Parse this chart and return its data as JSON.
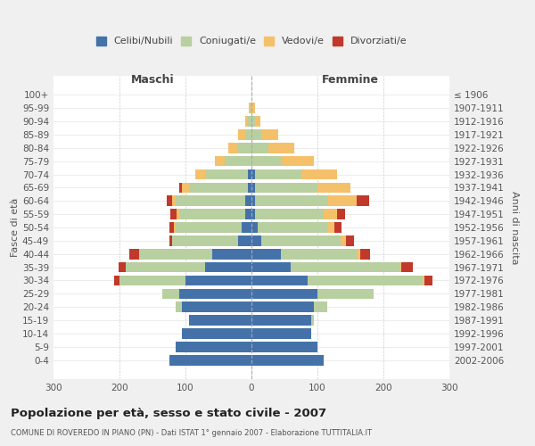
{
  "age_groups": [
    "0-4",
    "5-9",
    "10-14",
    "15-19",
    "20-24",
    "25-29",
    "30-34",
    "35-39",
    "40-44",
    "45-49",
    "50-54",
    "55-59",
    "60-64",
    "65-69",
    "70-74",
    "75-79",
    "80-84",
    "85-89",
    "90-94",
    "95-99",
    "100+"
  ],
  "birth_years": [
    "2002-2006",
    "1997-2001",
    "1992-1996",
    "1987-1991",
    "1982-1986",
    "1977-1981",
    "1972-1976",
    "1967-1971",
    "1962-1966",
    "1957-1961",
    "1952-1956",
    "1947-1951",
    "1942-1946",
    "1937-1941",
    "1932-1936",
    "1927-1931",
    "1922-1926",
    "1917-1921",
    "1912-1916",
    "1907-1911",
    "≤ 1906"
  ],
  "male": {
    "celibi": [
      125,
      115,
      105,
      95,
      105,
      110,
      100,
      70,
      60,
      20,
      15,
      10,
      10,
      5,
      5,
      0,
      0,
      0,
      0,
      0,
      0
    ],
    "coniugati": [
      0,
      0,
      0,
      0,
      10,
      25,
      100,
      120,
      110,
      100,
      100,
      100,
      105,
      90,
      65,
      40,
      20,
      10,
      5,
      2,
      0
    ],
    "vedovi": [
      0,
      0,
      0,
      0,
      0,
      0,
      0,
      0,
      0,
      0,
      2,
      3,
      5,
      10,
      15,
      15,
      15,
      10,
      5,
      2,
      0
    ],
    "divorziati": [
      0,
      0,
      0,
      0,
      0,
      0,
      8,
      12,
      15,
      5,
      8,
      10,
      8,
      5,
      0,
      0,
      0,
      0,
      0,
      0,
      0
    ]
  },
  "female": {
    "nubili": [
      110,
      100,
      90,
      90,
      95,
      100,
      85,
      60,
      45,
      15,
      10,
      5,
      5,
      5,
      5,
      0,
      0,
      0,
      0,
      0,
      0
    ],
    "coniugate": [
      0,
      0,
      0,
      5,
      20,
      85,
      175,
      165,
      115,
      120,
      105,
      105,
      110,
      95,
      70,
      45,
      25,
      15,
      5,
      2,
      0
    ],
    "vedove": [
      0,
      0,
      0,
      0,
      0,
      0,
      2,
      2,
      5,
      8,
      10,
      20,
      45,
      50,
      55,
      50,
      40,
      25,
      8,
      3,
      0
    ],
    "divorziate": [
      0,
      0,
      0,
      0,
      0,
      0,
      12,
      18,
      15,
      12,
      12,
      12,
      18,
      0,
      0,
      0,
      0,
      0,
      0,
      0,
      0
    ]
  },
  "colors": {
    "celibi": "#4472a8",
    "coniugati": "#b8cfa0",
    "vedovi": "#f5c06a",
    "divorziati": "#c0392b"
  },
  "xlim": 300,
  "title": "Popolazione per età, sesso e stato civile - 2007",
  "subtitle": "COMUNE DI ROVEREDO IN PIANO (PN) - Dati ISTAT 1° gennaio 2007 - Elaborazione TUTTITALIA.IT",
  "ylabel": "Fasce di età",
  "ylabel_right": "Anni di nascita",
  "xlabel_left": "Maschi",
  "xlabel_right": "Femmine",
  "bg_color": "#f0f0f0",
  "plot_bg_color": "#ffffff"
}
